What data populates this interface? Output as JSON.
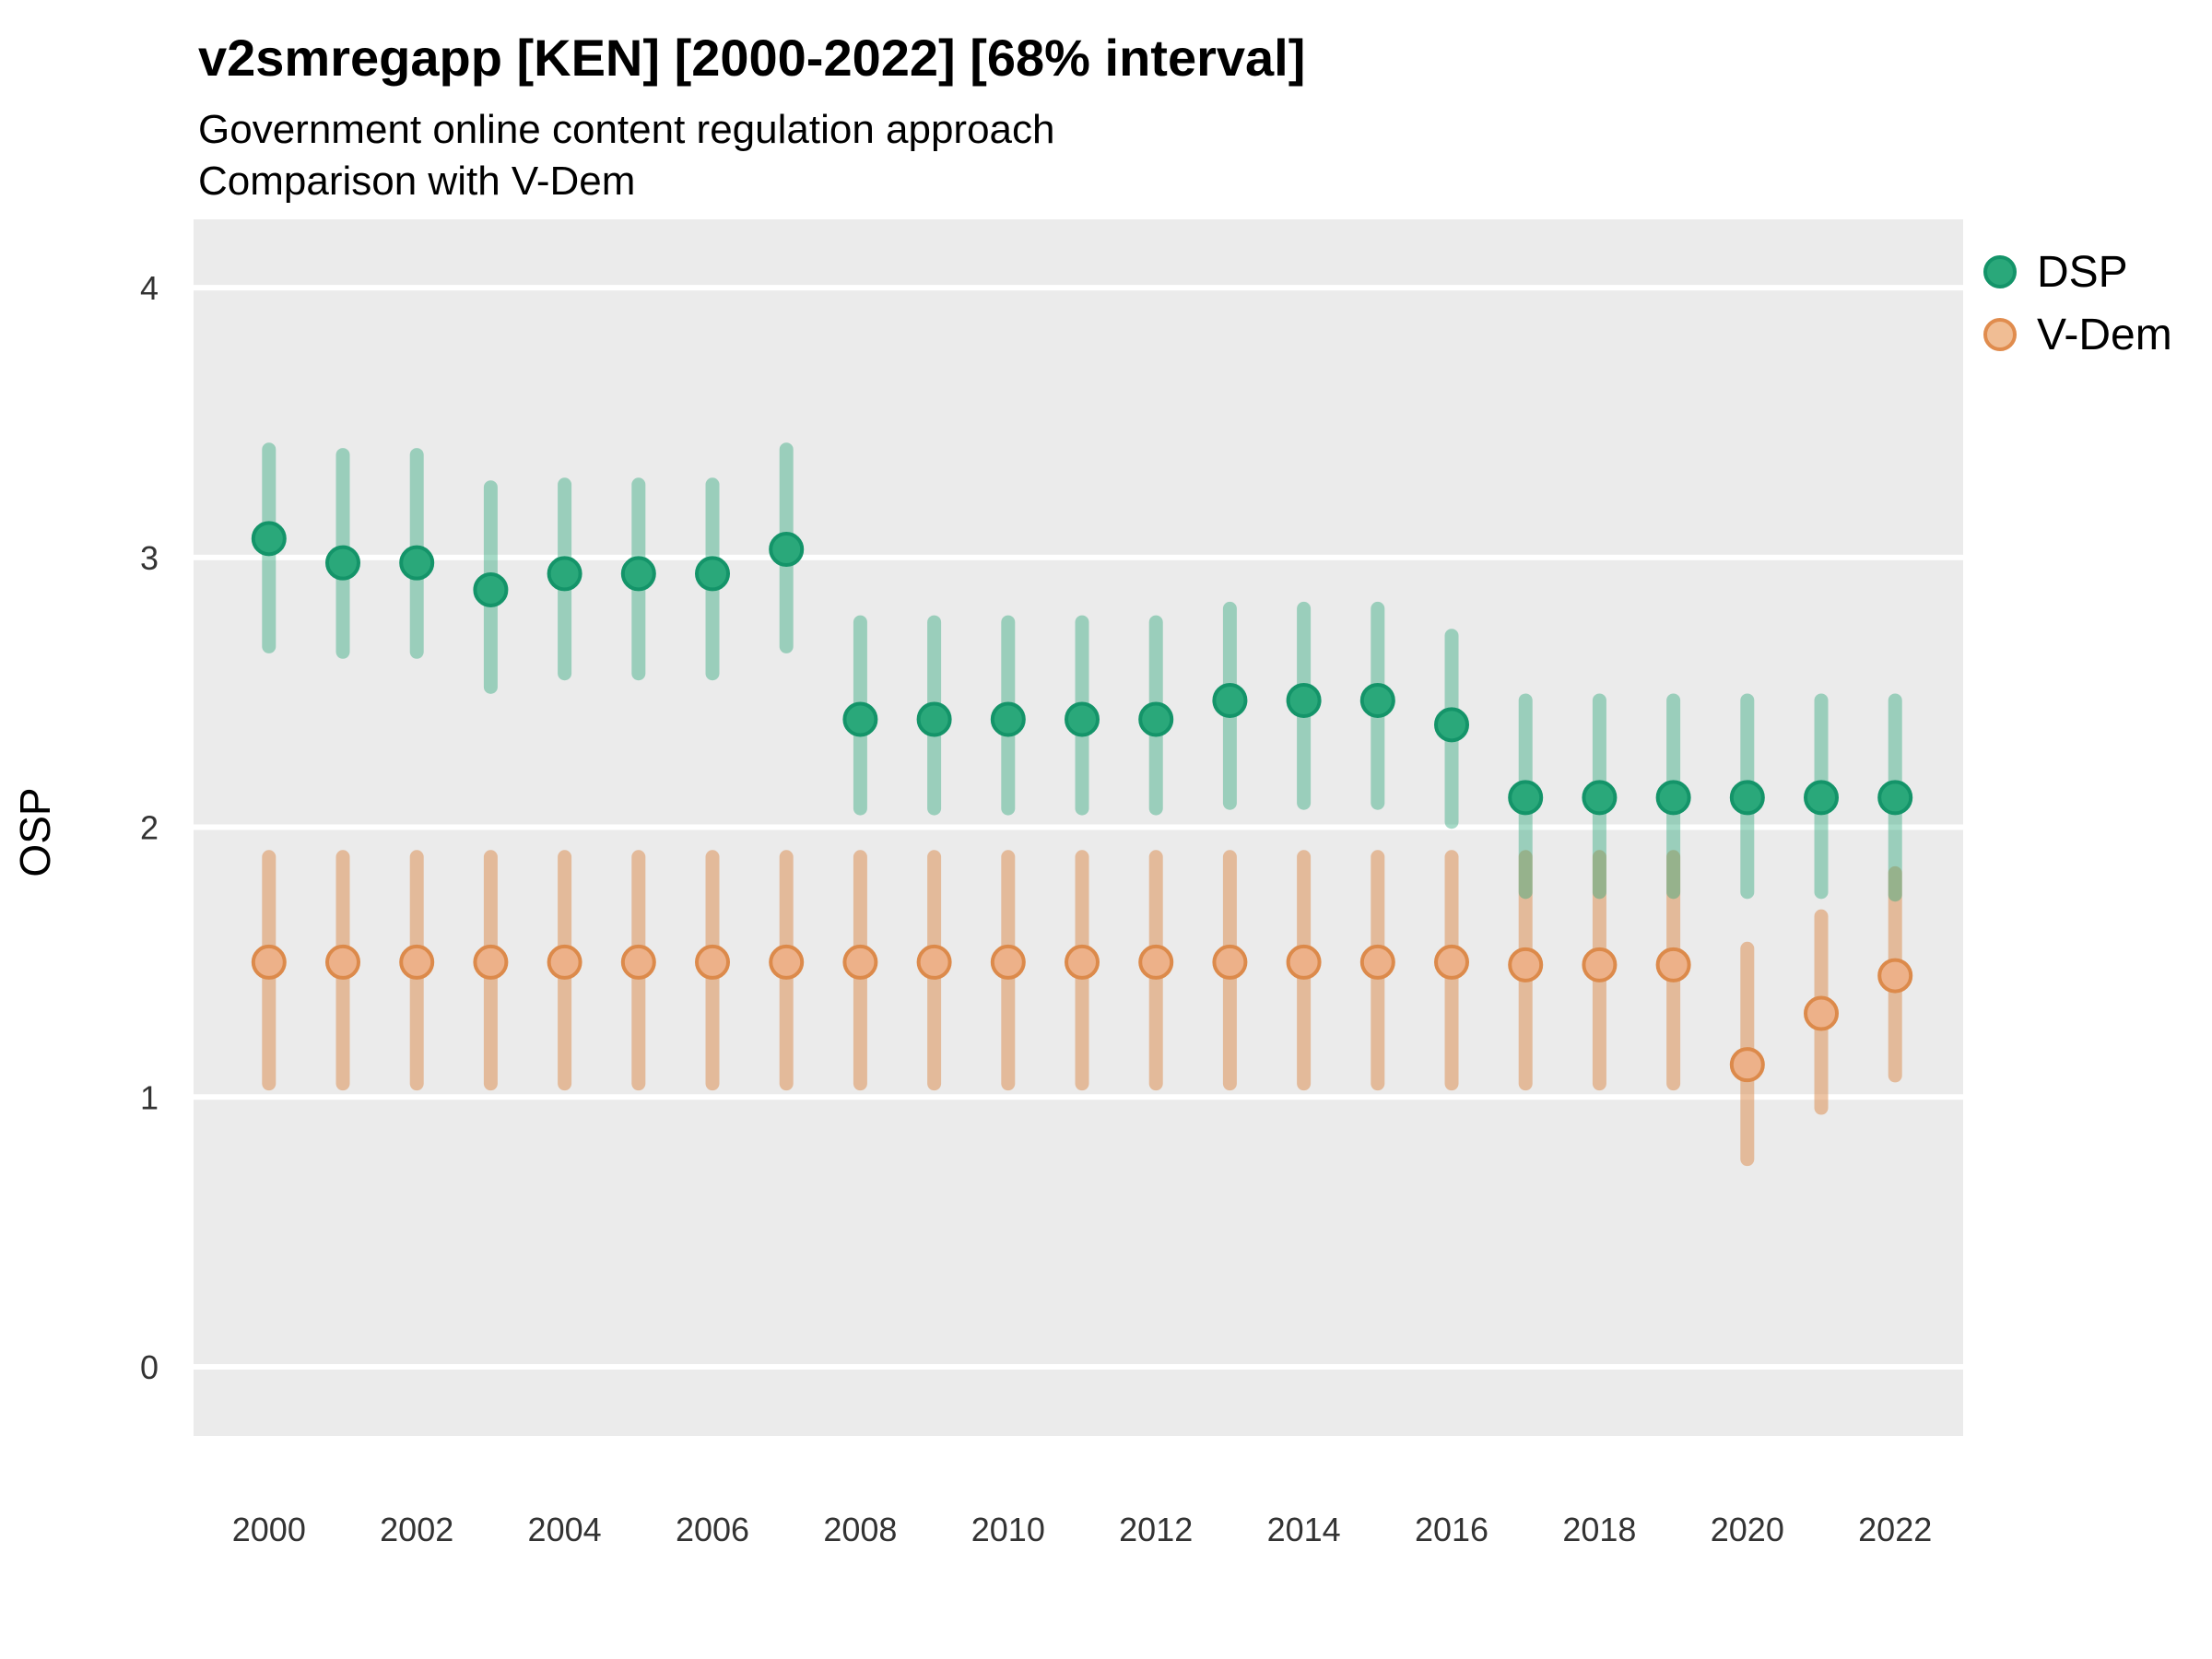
{
  "header": {
    "title": "v2smregapp [KEN] [2000-2022] [68% interval]",
    "subtitle1": "Government online content regulation approach",
    "subtitle2": "Comparison with V-Dem"
  },
  "axes": {
    "ylabel": "OSP"
  },
  "legend": {
    "items": [
      {
        "label": "DSP",
        "color": "#2aa87a"
      },
      {
        "label": "V-Dem",
        "color": "#edb189"
      }
    ]
  },
  "chart_data": {
    "type": "pointrange",
    "title": "v2smregapp [KEN] [2000-2022] [68% interval]",
    "subtitle": "Government online content regulation approach — Comparison with V-Dem",
    "xlabel": "",
    "ylabel": "OSP",
    "x": [
      2000,
      2001,
      2002,
      2003,
      2004,
      2005,
      2006,
      2007,
      2008,
      2009,
      2010,
      2011,
      2012,
      2013,
      2014,
      2015,
      2016,
      2017,
      2018,
      2019,
      2020,
      2021,
      2022
    ],
    "xticks": [
      2000,
      2002,
      2004,
      2006,
      2008,
      2010,
      2012,
      2014,
      2016,
      2018,
      2020,
      2022
    ],
    "yticks": [
      0,
      1,
      2,
      3,
      4
    ],
    "xlim": [
      1998.98,
      2022.92
    ],
    "ylim": [
      -0.256,
      4.253
    ],
    "grid": "horizontal-major-white-on-gray",
    "legend_position": "right",
    "panel_background": "#ebebeb",
    "interval_note": "68% interval",
    "series": [
      {
        "name": "DSP",
        "point_fill": "#2aa87a",
        "point_stroke": "#149469",
        "bar_color": "rgba(42,168,122,0.42)",
        "values": [
          3.07,
          2.98,
          2.98,
          2.88,
          2.94,
          2.94,
          2.94,
          3.03,
          2.4,
          2.4,
          2.4,
          2.4,
          2.4,
          2.47,
          2.47,
          2.47,
          2.38,
          2.11,
          2.11,
          2.11,
          2.11,
          2.11,
          2.11
        ],
        "lower": [
          2.67,
          2.65,
          2.65,
          2.52,
          2.57,
          2.57,
          2.57,
          2.67,
          2.07,
          2.07,
          2.07,
          2.07,
          2.07,
          2.09,
          2.09,
          2.09,
          2.02,
          1.76,
          1.76,
          1.76,
          1.76,
          1.76,
          1.75
        ],
        "upper": [
          3.4,
          3.38,
          3.38,
          3.26,
          3.27,
          3.27,
          3.27,
          3.4,
          2.76,
          2.76,
          2.76,
          2.76,
          2.76,
          2.81,
          2.81,
          2.81,
          2.71,
          2.47,
          2.47,
          2.47,
          2.47,
          2.47,
          2.47
        ]
      },
      {
        "name": "V-Dem",
        "point_fill": "#edb189",
        "point_stroke": "#dc8a4b",
        "bar_color": "rgba(220,138,74,0.5)",
        "values": [
          1.5,
          1.5,
          1.5,
          1.5,
          1.5,
          1.5,
          1.5,
          1.5,
          1.5,
          1.5,
          1.5,
          1.5,
          1.5,
          1.5,
          1.5,
          1.5,
          1.5,
          1.49,
          1.49,
          1.49,
          1.12,
          1.31,
          1.45
        ],
        "lower": [
          1.05,
          1.05,
          1.05,
          1.05,
          1.05,
          1.05,
          1.05,
          1.05,
          1.05,
          1.05,
          1.05,
          1.05,
          1.05,
          1.05,
          1.05,
          1.05,
          1.05,
          1.05,
          1.05,
          1.05,
          0.77,
          0.96,
          1.08
        ],
        "upper": [
          1.89,
          1.89,
          1.89,
          1.89,
          1.89,
          1.89,
          1.89,
          1.89,
          1.89,
          1.89,
          1.89,
          1.89,
          1.89,
          1.89,
          1.89,
          1.89,
          1.89,
          1.89,
          1.89,
          1.89,
          1.55,
          1.67,
          1.83
        ]
      }
    ]
  }
}
